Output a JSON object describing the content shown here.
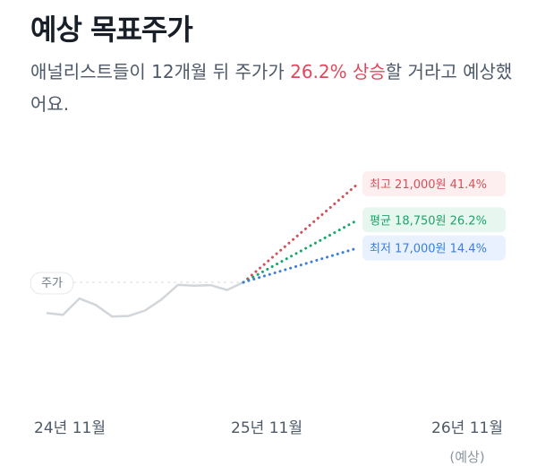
{
  "header": {
    "title": "예상 목표주가",
    "desc_prefix": "애널리스트들이 12개월 뒤 주가가 ",
    "desc_highlight": "26.2% 상승",
    "desc_suffix": "할 거라고 예상했어요."
  },
  "colors": {
    "price_line": "#d1d6db",
    "high": "#d5515a",
    "avg": "#1aa56b",
    "low": "#3d7fd8",
    "text": "#191f28",
    "subtext": "#4e5968"
  },
  "chart_data": {
    "type": "line",
    "x_labels": [
      "24년 11월",
      "25년 11월",
      "26년 11월"
    ],
    "x_sublabel": "(예상)",
    "price_label": "주가",
    "current_price": 14860,
    "series": [
      {
        "name": "주가",
        "values": [
          12950,
          12830,
          13850,
          13450,
          12730,
          12760,
          13100,
          13780,
          14700,
          14650,
          14680,
          14380,
          14860
        ]
      }
    ],
    "targets": [
      {
        "key": "high",
        "label": "최고",
        "value": "21,000원",
        "change": "41.4%",
        "price": 21000
      },
      {
        "key": "avg",
        "label": "평균",
        "value": "18,750원",
        "change": "26.2%",
        "price": 18750
      },
      {
        "key": "low",
        "label": "최저",
        "value": "17,000원",
        "change": "14.4%",
        "price": 17000
      }
    ]
  }
}
